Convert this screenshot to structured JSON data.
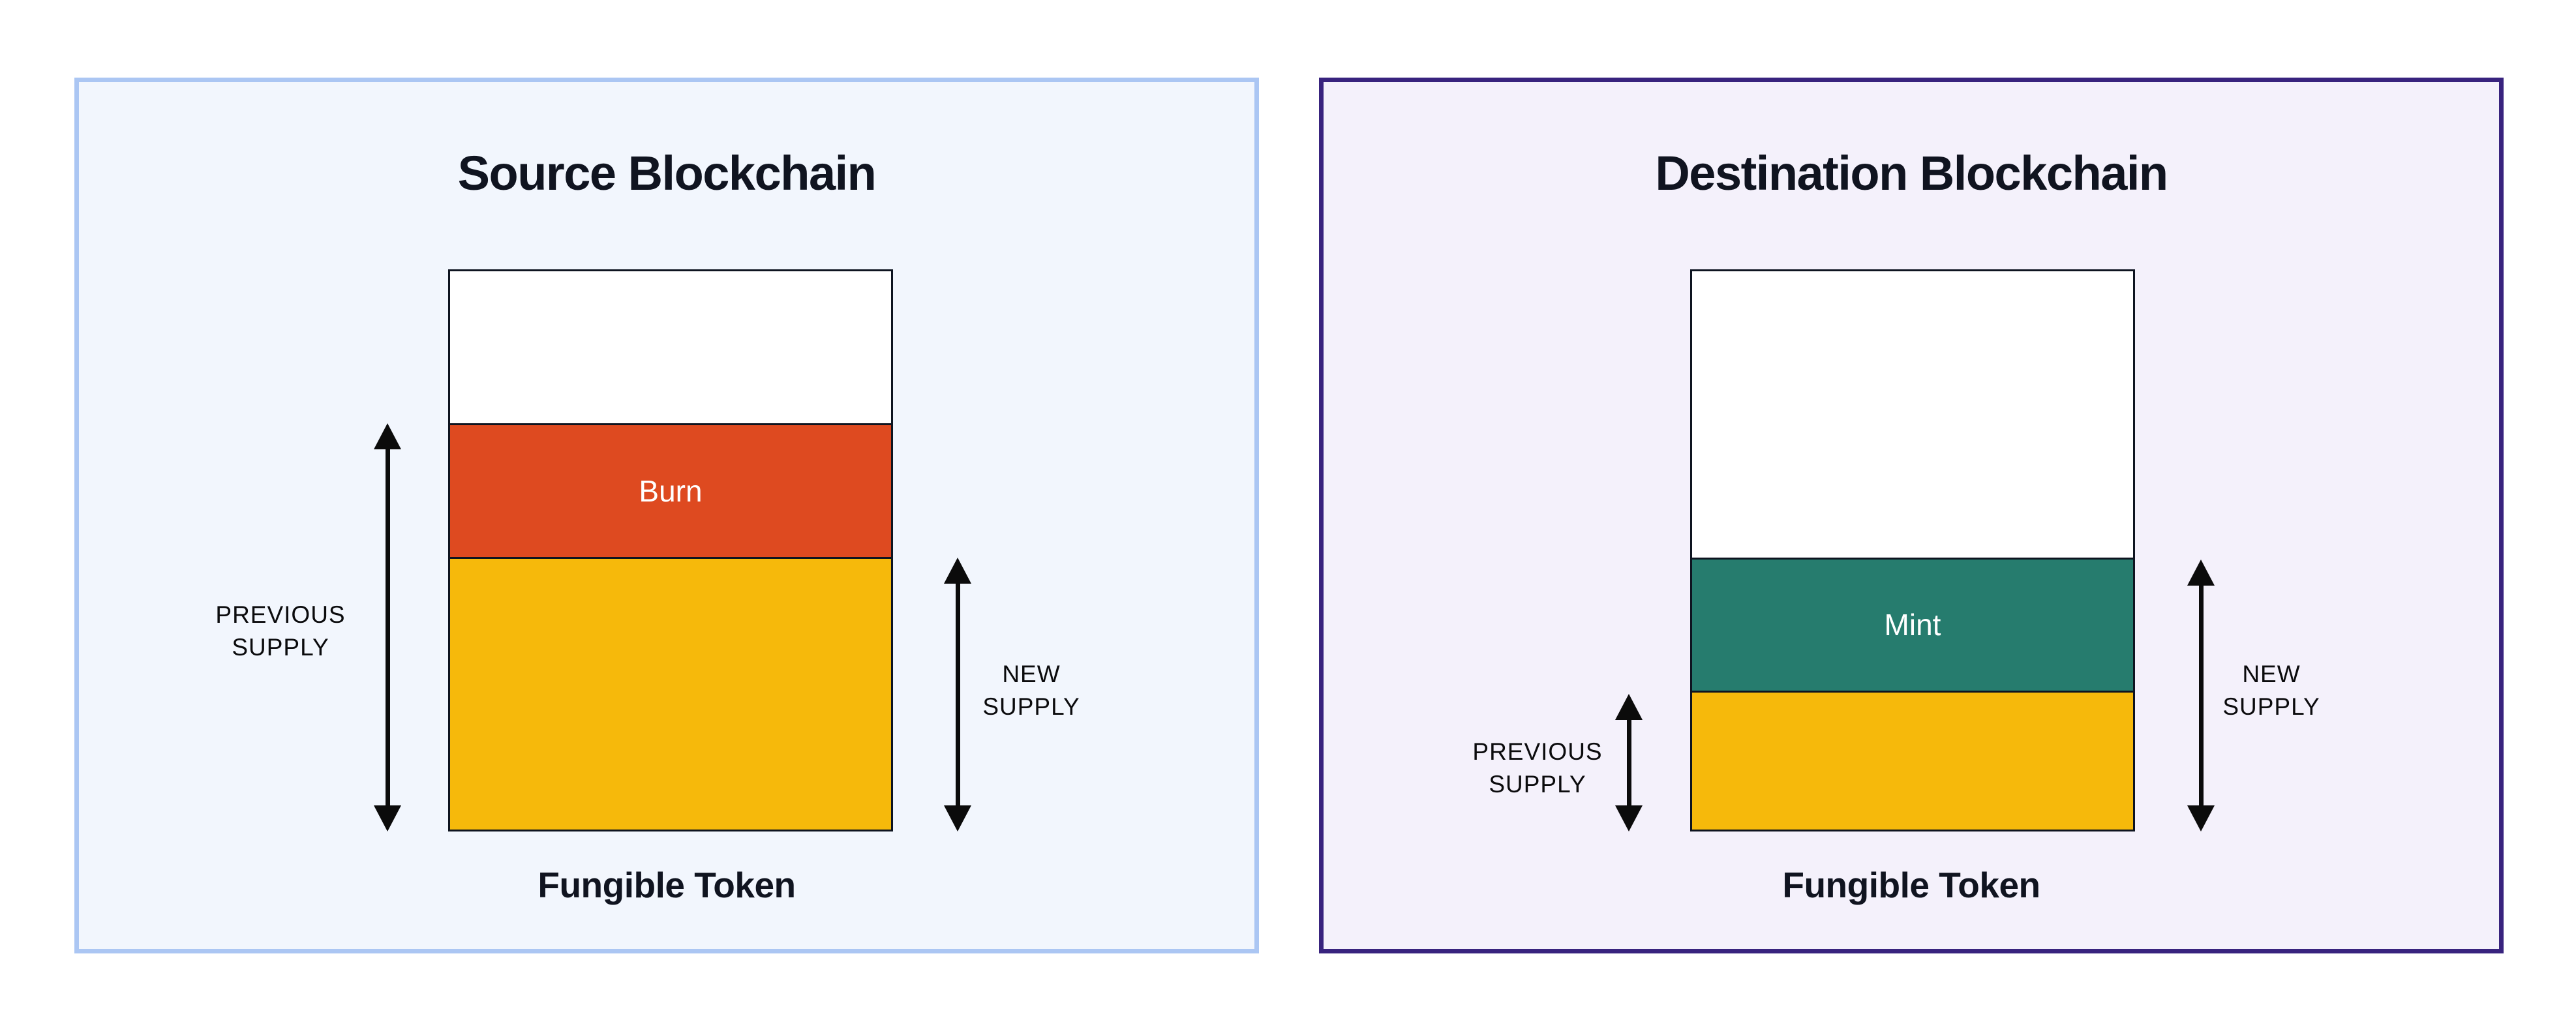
{
  "page": {
    "background": "#ffffff"
  },
  "panels": {
    "source": {
      "title": "Source Blockchain",
      "caption": "Fungible Token",
      "theme": {
        "background": "#f2f6fd",
        "border": "#abc6f3"
      },
      "bar": {
        "segments": [
          {
            "name": "unallocated",
            "color": "#ffffff",
            "pct": 27.4,
            "label": ""
          },
          {
            "name": "burn",
            "color": "#de4a20",
            "pct": 23.8,
            "label": "Burn"
          },
          {
            "name": "remaining-supply",
            "color": "#f6b90b",
            "pct": 48.8,
            "label": ""
          }
        ]
      },
      "annotations": {
        "previous_supply": {
          "line1": "PREVIOUS",
          "line2": "SUPPLY"
        },
        "new_supply": {
          "line1": "NEW",
          "line2": "SUPPLY"
        }
      }
    },
    "destination": {
      "title": "Destination Blockchain",
      "caption": "Fungible Token",
      "theme": {
        "background": "#f4f1fb",
        "border": "#38237e"
      },
      "bar": {
        "segments": [
          {
            "name": "unallocated",
            "color": "#ffffff",
            "pct": 51.6,
            "label": ""
          },
          {
            "name": "mint",
            "color": "#267c6e",
            "pct": 23.7,
            "label": "Mint"
          },
          {
            "name": "previous-supply",
            "color": "#f6b90b",
            "pct": 24.7,
            "label": ""
          }
        ]
      },
      "annotations": {
        "previous_supply": {
          "line1": "PREVIOUS",
          "line2": "SUPPLY"
        },
        "new_supply": {
          "line1": "NEW",
          "line2": "SUPPLY"
        }
      }
    }
  }
}
